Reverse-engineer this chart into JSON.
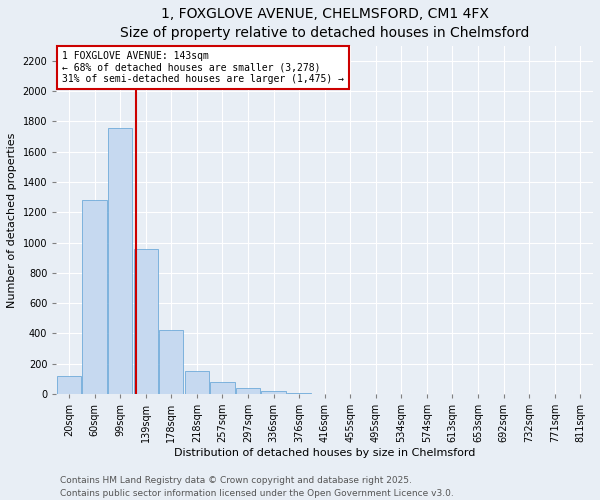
{
  "title": "1, FOXGLOVE AVENUE, CHELMSFORD, CM1 4FX",
  "subtitle": "Size of property relative to detached houses in Chelmsford",
  "xlabel": "Distribution of detached houses by size in Chelmsford",
  "ylabel": "Number of detached properties",
  "categories": [
    "20sqm",
    "60sqm",
    "99sqm",
    "139sqm",
    "178sqm",
    "218sqm",
    "257sqm",
    "297sqm",
    "336sqm",
    "376sqm",
    "416sqm",
    "455sqm",
    "495sqm",
    "534sqm",
    "574sqm",
    "613sqm",
    "653sqm",
    "692sqm",
    "732sqm",
    "771sqm",
    "811sqm"
  ],
  "bar_values": [
    120,
    1280,
    1760,
    960,
    420,
    150,
    80,
    40,
    20,
    5,
    2,
    1,
    0,
    0,
    0,
    0,
    0,
    0,
    0,
    0,
    0
  ],
  "bar_color": "#c6d9f0",
  "bar_edge_color": "#5a9fd4",
  "ylim": [
    0,
    2300
  ],
  "yticks": [
    0,
    200,
    400,
    600,
    800,
    1000,
    1200,
    1400,
    1600,
    1800,
    2000,
    2200
  ],
  "annotation_line1": "1 FOXGLOVE AVENUE: 143sqm",
  "annotation_line2": "← 68% of detached houses are smaller (3,278)",
  "annotation_line3": "31% of semi-detached houses are larger (1,475) →",
  "vline_color": "#cc0000",
  "annotation_box_color": "#cc0000",
  "annotation_text_color": "#000000",
  "footer1": "Contains HM Land Registry data © Crown copyright and database right 2025.",
  "footer2": "Contains public sector information licensed under the Open Government Licence v3.0.",
  "bg_color": "#e8eef5",
  "plot_bg_color": "#e8eef5",
  "title_fontsize": 10,
  "axis_label_fontsize": 8,
  "tick_fontsize": 7,
  "annotation_fontsize": 7,
  "footer_fontsize": 6.5,
  "vline_x_index": 2.6
}
